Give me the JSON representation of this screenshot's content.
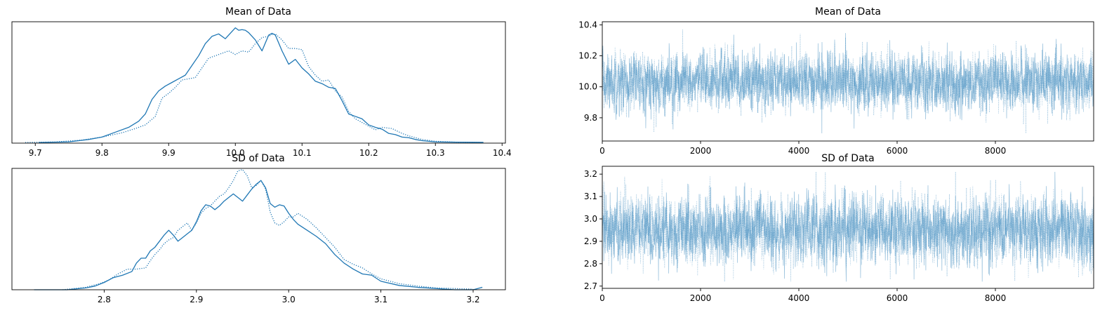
{
  "chart_data": [
    {
      "type": "line",
      "chart_kind": "kde",
      "title": "Mean of Data",
      "xlabel": "",
      "ylabel": "",
      "xlim": [
        9.665,
        10.405
      ],
      "ylim": [
        0,
        10.0
      ],
      "x_ticks": [
        9.7,
        9.8,
        9.9,
        10.0,
        10.1,
        10.2,
        10.3,
        10.4
      ],
      "x_tick_labels": [
        "9.7",
        "9.8",
        "9.9",
        "10.0",
        "10.1",
        "10.2",
        "10.3",
        "10.4"
      ],
      "y_ticks_visible": false,
      "grid": false,
      "line_color": "#1f77b4",
      "series": [
        {
          "line_style": "solid",
          "x": [
            9.705,
            9.75,
            9.78,
            9.8,
            9.82,
            9.84,
            9.855,
            9.865,
            9.875,
            9.885,
            9.895,
            9.905,
            9.915,
            9.925,
            9.935,
            9.945,
            9.955,
            9.965,
            9.975,
            9.985,
            9.995,
            10.0,
            10.005,
            10.01,
            10.015,
            10.02,
            10.03,
            10.04,
            10.05,
            10.055,
            10.06,
            10.07,
            10.08,
            10.09,
            10.1,
            10.11,
            10.12,
            10.13,
            10.14,
            10.15,
            10.16,
            10.17,
            10.18,
            10.19,
            10.2,
            10.21,
            10.22,
            10.23,
            10.24,
            10.25,
            10.26,
            10.27,
            10.28,
            10.3,
            10.33,
            10.372
          ],
          "y": [
            0.05,
            0.1,
            0.3,
            0.5,
            0.9,
            1.3,
            1.8,
            2.4,
            3.6,
            4.3,
            4.7,
            5.0,
            5.3,
            5.6,
            6.4,
            7.2,
            8.2,
            8.8,
            9.0,
            8.6,
            9.2,
            9.5,
            9.3,
            9.35,
            9.3,
            9.1,
            8.5,
            7.6,
            8.9,
            9.05,
            8.9,
            7.6,
            6.5,
            6.9,
            6.2,
            5.7,
            5.1,
            4.9,
            4.6,
            4.5,
            3.5,
            2.4,
            2.2,
            2.0,
            1.5,
            1.3,
            1.15,
            0.8,
            0.7,
            0.5,
            0.45,
            0.3,
            0.2,
            0.1,
            0.08,
            0.06
          ]
        },
        {
          "line_style": "dotted",
          "x": [
            9.685,
            9.73,
            9.77,
            9.8,
            9.83,
            9.85,
            9.865,
            9.88,
            9.89,
            9.9,
            9.91,
            9.92,
            9.93,
            9.94,
            9.95,
            9.96,
            9.97,
            9.98,
            9.99,
            10.0,
            10.01,
            10.02,
            10.03,
            10.04,
            10.05,
            10.055,
            10.06,
            10.07,
            10.08,
            10.09,
            10.1,
            10.11,
            10.12,
            10.13,
            10.14,
            10.15,
            10.16,
            10.17,
            10.18,
            10.19,
            10.2,
            10.21,
            10.22,
            10.235,
            10.25,
            10.26,
            10.28,
            10.3,
            10.33,
            10.37
          ],
          "y": [
            0.05,
            0.1,
            0.25,
            0.5,
            0.85,
            1.2,
            1.5,
            2.2,
            3.7,
            4.1,
            4.6,
            5.2,
            5.3,
            5.4,
            6.2,
            7.0,
            7.2,
            7.4,
            7.6,
            7.3,
            7.6,
            7.5,
            8.2,
            8.7,
            8.8,
            8.95,
            9.0,
            8.5,
            7.8,
            7.8,
            7.7,
            6.3,
            5.6,
            5.1,
            5.2,
            4.3,
            3.8,
            2.6,
            2.0,
            1.7,
            1.4,
            1.1,
            1.3,
            1.2,
            0.8,
            0.6,
            0.3,
            0.15,
            0.08,
            0.05
          ]
        }
      ]
    },
    {
      "type": "line",
      "chart_kind": "trace",
      "title": "Mean of Data",
      "xlabel": "",
      "ylabel": "",
      "xlim": [
        0,
        10000
      ],
      "ylim": [
        9.65,
        10.42
      ],
      "x_ticks": [
        0,
        2000,
        4000,
        6000,
        8000
      ],
      "x_tick_labels": [
        "0",
        "2000",
        "4000",
        "6000",
        "8000"
      ],
      "y_ticks": [
        9.8,
        10.0,
        10.2,
        10.4
      ],
      "y_tick_labels": [
        "9.8",
        "10.0",
        "10.2",
        "10.4"
      ],
      "grid": false,
      "line_color": "#1f77b4",
      "draws": 10000,
      "center": 10.03,
      "spread": 0.09,
      "minimum": 9.7,
      "maximum": 10.37,
      "series": [
        {
          "line_style": "solid"
        },
        {
          "line_style": "dotted"
        }
      ]
    },
    {
      "type": "line",
      "chart_kind": "kde",
      "title": "SD of Data",
      "xlabel": "",
      "ylabel": "",
      "xlim": [
        2.7,
        3.235
      ],
      "ylim": [
        0,
        10.0
      ],
      "x_ticks": [
        2.8,
        2.9,
        3.0,
        3.1,
        3.2
      ],
      "x_tick_labels": [
        "2.8",
        "2.9",
        "3.0",
        "3.1",
        "3.2"
      ],
      "y_ticks_visible": false,
      "grid": false,
      "line_color": "#1f77b4",
      "series": [
        {
          "line_style": "solid",
          "x": [
            2.724,
            2.76,
            2.78,
            2.79,
            2.8,
            2.81,
            2.82,
            2.83,
            2.835,
            2.84,
            2.845,
            2.85,
            2.855,
            2.86,
            2.865,
            2.87,
            2.875,
            2.88,
            2.885,
            2.89,
            2.895,
            2.9,
            2.905,
            2.91,
            2.915,
            2.92,
            2.925,
            2.93,
            2.935,
            2.94,
            2.945,
            2.95,
            2.955,
            2.96,
            2.965,
            2.97,
            2.975,
            2.98,
            2.985,
            2.99,
            2.995,
            3.0,
            3.005,
            3.01,
            3.02,
            3.03,
            3.04,
            3.05,
            3.06,
            3.07,
            3.08,
            3.09,
            3.1,
            3.12,
            3.14,
            3.16,
            3.18,
            3.2,
            3.21
          ],
          "y": [
            0.0,
            0.0,
            0.15,
            0.3,
            0.6,
            1.0,
            1.2,
            1.5,
            2.2,
            2.6,
            2.6,
            3.2,
            3.5,
            4.0,
            4.5,
            4.9,
            4.5,
            4.0,
            4.3,
            4.6,
            4.9,
            5.6,
            6.5,
            7.0,
            6.9,
            6.6,
            6.9,
            7.3,
            7.6,
            7.9,
            7.6,
            7.3,
            7.8,
            8.3,
            8.7,
            9.0,
            8.4,
            7.1,
            6.8,
            7.0,
            6.9,
            6.3,
            5.8,
            5.4,
            4.9,
            4.4,
            3.8,
            2.9,
            2.2,
            1.7,
            1.3,
            1.2,
            0.7,
            0.35,
            0.2,
            0.1,
            0.0,
            0.0,
            0.2
          ]
        },
        {
          "line_style": "dotted",
          "x": [
            2.755,
            2.78,
            2.795,
            2.805,
            2.815,
            2.825,
            2.835,
            2.845,
            2.85,
            2.855,
            2.86,
            2.865,
            2.87,
            2.875,
            2.88,
            2.885,
            2.89,
            2.895,
            2.9,
            2.905,
            2.91,
            2.915,
            2.92,
            2.925,
            2.93,
            2.935,
            2.94,
            2.945,
            2.95,
            2.955,
            2.96,
            2.965,
            2.97,
            2.975,
            2.98,
            2.985,
            2.99,
            2.995,
            3.0,
            3.005,
            3.01,
            3.02,
            3.03,
            3.04,
            3.05,
            3.06,
            3.065,
            3.07,
            3.08,
            3.09,
            3.1,
            3.12,
            3.14,
            3.16,
            3.2
          ],
          "y": [
            0.0,
            0.2,
            0.5,
            0.8,
            1.3,
            1.7,
            1.7,
            1.8,
            2.4,
            2.9,
            3.3,
            3.8,
            4.1,
            4.3,
            4.9,
            5.2,
            5.5,
            4.9,
            5.5,
            6.3,
            6.7,
            6.9,
            7.3,
            7.7,
            7.9,
            8.4,
            9.0,
            9.8,
            9.9,
            9.4,
            8.4,
            8.6,
            9.0,
            8.3,
            6.4,
            5.5,
            5.3,
            5.6,
            6.0,
            6.0,
            6.3,
            5.8,
            5.1,
            4.3,
            3.5,
            2.5,
            2.3,
            2.1,
            1.8,
            1.3,
            0.9,
            0.5,
            0.3,
            0.15,
            0.05
          ]
        }
      ]
    },
    {
      "type": "line",
      "chart_kind": "trace",
      "title": "SD of Data",
      "xlabel": "",
      "ylabel": "",
      "xlim": [
        0,
        10000
      ],
      "ylim": [
        2.69,
        3.235
      ],
      "x_ticks": [
        0,
        2000,
        4000,
        6000,
        8000
      ],
      "x_tick_labels": [
        "0",
        "2000",
        "4000",
        "6000",
        "8000"
      ],
      "y_ticks": [
        2.7,
        2.8,
        2.9,
        3.0,
        3.1,
        3.2
      ],
      "y_tick_labels": [
        "2.7",
        "2.8",
        "2.9",
        "3.0",
        "3.1",
        "3.2"
      ],
      "grid": false,
      "line_color": "#1f77b4",
      "draws": 10000,
      "center": 2.95,
      "spread": 0.075,
      "minimum": 2.72,
      "maximum": 3.21,
      "series": [
        {
          "line_style": "solid"
        },
        {
          "line_style": "dotted"
        }
      ]
    }
  ]
}
